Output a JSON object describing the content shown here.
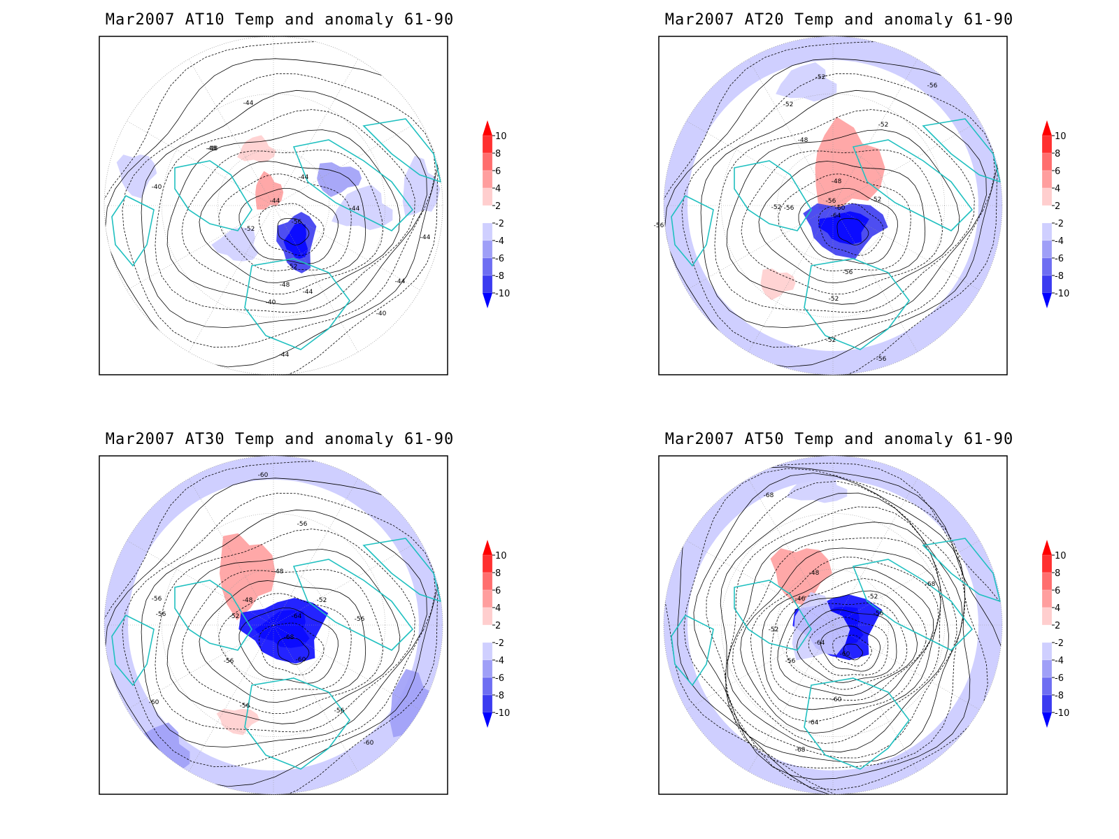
{
  "panels": [
    {
      "title": "Mar2007 AT10 Temp and anomaly 61-90",
      "contour_labels": [
        "-44",
        "-48",
        "-40",
        "-44",
        "-44",
        "-44",
        "-48",
        "-52",
        "-56",
        "-52",
        "-48",
        "-44",
        "-40",
        "-40",
        "-44",
        "-44",
        "-44"
      ],
      "anomalies": [
        {
          "value": 3
        },
        {
          "value": 4
        },
        {
          "value": -5
        },
        {
          "value": -3
        },
        {
          "value": -8
        },
        {
          "value": -3
        },
        {
          "value": -3
        },
        {
          "value": -2
        }
      ]
    },
    {
      "title": "Mar2007 AT20 Temp and anomaly 61-90",
      "contour_labels": [
        "-52",
        "-52",
        "-52",
        "-56",
        "-48",
        "-48",
        "-56",
        "-52",
        "-56",
        "-60",
        "-52",
        "-64",
        "-56",
        "-52",
        "-52",
        "-56",
        "-56"
      ],
      "anomalies": [
        {
          "value": 5
        },
        {
          "value": 3
        },
        {
          "value": -9
        },
        {
          "value": -3
        },
        {
          "value": -4
        },
        {
          "value": -3
        },
        {
          "value": -4
        }
      ]
    },
    {
      "title": "Mar2007 AT30 Temp and anomaly 61-90",
      "contour_labels": [
        "-60",
        "-56",
        "-56",
        "-56",
        "-48",
        "-48",
        "-52",
        "-52",
        "-64",
        "-68",
        "-56",
        "-56",
        "-60",
        "-60",
        "-56",
        "-56",
        "-60"
      ],
      "anomalies": [
        {
          "value": 4
        },
        {
          "value": 3
        },
        {
          "value": -10
        },
        {
          "value": -3
        },
        {
          "value": -4
        },
        {
          "value": -4
        }
      ]
    },
    {
      "title": "Mar2007 AT50 Temp and anomaly 61-90",
      "contour_labels": [
        "-68",
        "-48",
        "-46",
        "-52",
        "-68",
        "-56",
        "-52",
        "-56",
        "-64",
        "-60",
        "-60",
        "-64",
        "-68"
      ],
      "anomalies": [
        {
          "value": 4
        },
        {
          "value": -10
        },
        {
          "value": -3
        },
        {
          "value": -3
        },
        {
          "value": -3
        }
      ]
    }
  ],
  "colorbar": {
    "labels": [
      "10",
      "8",
      "6",
      "4",
      "2",
      "-2",
      "-4",
      "-6",
      "-8",
      "-10"
    ],
    "colors": [
      "#ff3030",
      "#ff6e6e",
      "#ff9e9e",
      "#ffcece",
      "#ffffff",
      "#cfcfff",
      "#9f9ff7",
      "#6e6ef2",
      "#3b3bf0",
      "#0c0cff"
    ],
    "top_color": "#ff0000",
    "bottom_color": "#0000ff"
  },
  "coastline_color": "#20c0c0"
}
